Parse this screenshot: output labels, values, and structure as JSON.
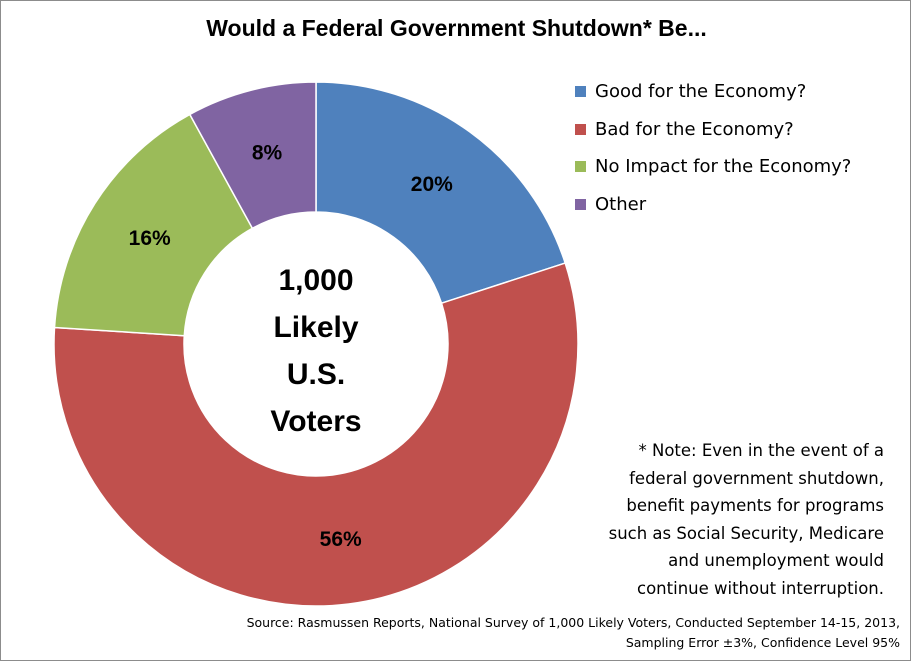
{
  "chart_data": {
    "type": "pie",
    "title": "Would a Federal Government Shutdown* Be...",
    "categories": [
      "Good for the Economy?",
      "Bad for the Economy?",
      "No Impact for the Economy?",
      "Other"
    ],
    "values": [
      20,
      56,
      16,
      8
    ],
    "value_labels": [
      "20%",
      "56%",
      "16%",
      "8%"
    ],
    "colors": [
      "#4f81bd",
      "#c0504d",
      "#9bbb59",
      "#8064a2"
    ],
    "donut": true,
    "center_label": [
      "1,000",
      "Likely",
      "U.S.",
      "Voters"
    ],
    "legend_position": "top-right",
    "xlabel": "",
    "ylabel": ""
  },
  "note": [
    "* Note: Even in the event of a",
    "federal government shutdown,",
    "benefit payments for programs",
    "such as Social Security, Medicare",
    "and unemployment would",
    "continue without interruption."
  ],
  "source": [
    "Source: Rasmussen Reports, National Survey of 1,000 Likely Voters, Conducted September 14-15, 2013,",
    "Sampling Error ±3%, Confidence Level 95%"
  ]
}
